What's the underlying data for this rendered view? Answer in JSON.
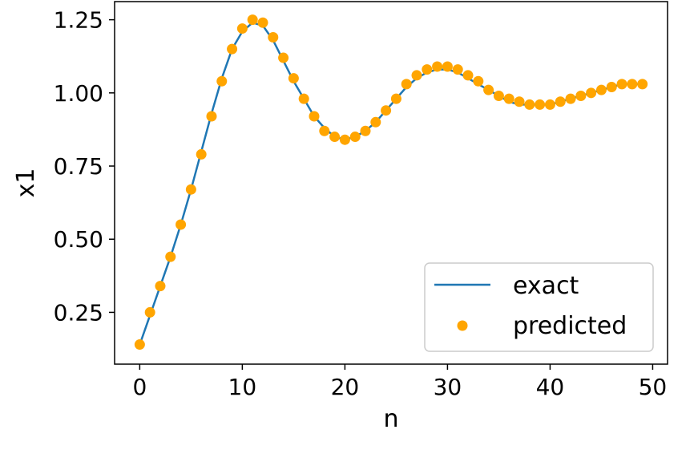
{
  "chart_data": {
    "type": "line",
    "xlabel": "n",
    "ylabel": "x1",
    "xlim": [
      -2.45,
      51.45
    ],
    "ylim": [
      0.073,
      1.312
    ],
    "xticks": [
      "0",
      "10",
      "20",
      "30",
      "40",
      "50"
    ],
    "yticks": [
      "0.25",
      "0.50",
      "0.75",
      "1.00",
      "1.25"
    ],
    "legend_position": "lower-right",
    "grid": false,
    "colors": {
      "exact": "#1f77b4",
      "predicted": "#ffa500"
    },
    "series": [
      {
        "name": "exact",
        "style": "line",
        "x": [
          0,
          1,
          2,
          3,
          4,
          5,
          6,
          7,
          8,
          9,
          10,
          11,
          12,
          13,
          14,
          15,
          16,
          17,
          18,
          19,
          20,
          21,
          22,
          23,
          24,
          25,
          26,
          27,
          28,
          29,
          30,
          31,
          32,
          33,
          34,
          35,
          36,
          37,
          38,
          39,
          40,
          41,
          42,
          43,
          44,
          45,
          46,
          47,
          48,
          49
        ],
        "y": [
          0.14,
          0.24,
          0.34,
          0.44,
          0.55,
          0.67,
          0.8,
          0.93,
          1.05,
          1.15,
          1.21,
          1.24,
          1.23,
          1.18,
          1.11,
          1.04,
          0.98,
          0.92,
          0.88,
          0.85,
          0.84,
          0.85,
          0.87,
          0.9,
          0.94,
          0.98,
          1.02,
          1.05,
          1.07,
          1.08,
          1.08,
          1.07,
          1.05,
          1.03,
          1.01,
          0.99,
          0.97,
          0.96,
          0.96,
          0.96,
          0.96,
          0.97,
          0.98,
          0.99,
          1.0,
          1.01,
          1.02,
          1.03,
          1.03,
          1.03
        ]
      },
      {
        "name": "predicted",
        "style": "scatter",
        "x": [
          0,
          1,
          2,
          3,
          4,
          5,
          6,
          7,
          8,
          9,
          10,
          11,
          12,
          13,
          14,
          15,
          16,
          17,
          18,
          19,
          20,
          21,
          22,
          23,
          24,
          25,
          26,
          27,
          28,
          29,
          30,
          31,
          32,
          33,
          34,
          35,
          36,
          37,
          38,
          39,
          40,
          41,
          42,
          43,
          44,
          45,
          46,
          47,
          48,
          49
        ],
        "y": [
          0.14,
          0.25,
          0.34,
          0.44,
          0.55,
          0.67,
          0.79,
          0.92,
          1.04,
          1.15,
          1.22,
          1.25,
          1.24,
          1.19,
          1.12,
          1.05,
          0.98,
          0.92,
          0.87,
          0.85,
          0.84,
          0.85,
          0.87,
          0.9,
          0.94,
          0.98,
          1.03,
          1.06,
          1.08,
          1.09,
          1.09,
          1.08,
          1.06,
          1.04,
          1.01,
          0.99,
          0.98,
          0.97,
          0.96,
          0.96,
          0.96,
          0.97,
          0.98,
          0.99,
          1.0,
          1.01,
          1.02,
          1.03,
          1.03,
          1.03
        ]
      }
    ]
  }
}
